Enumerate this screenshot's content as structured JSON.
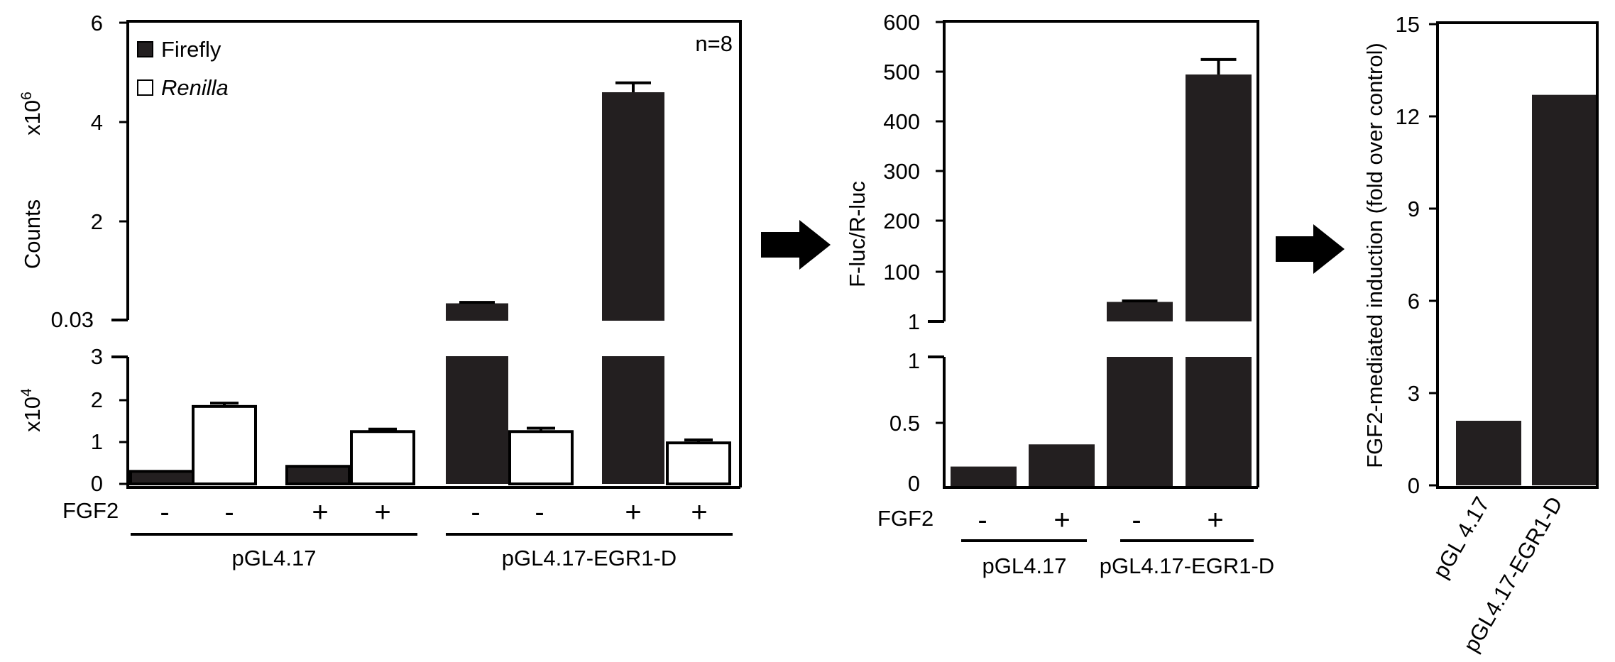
{
  "colors": {
    "filled": "#231f20",
    "open": "#ffffff",
    "axis": "#000000"
  },
  "chart_data": [
    {
      "type": "bar",
      "subtype": "broken-axis grouped bar with error bars",
      "ylabel": "Counts",
      "annotation": "n=8",
      "upper_axis": {
        "multiplier_base": "x10",
        "multiplier_exp": "6",
        "ticks": [
          "6",
          "4",
          "2",
          "0.03"
        ],
        "ylim": [
          0.03,
          6
        ]
      },
      "lower_axis": {
        "multiplier_base": "x10",
        "multiplier_exp": "4",
        "ticks": [
          "3",
          "2",
          "1",
          "0"
        ],
        "ylim": [
          0,
          3
        ]
      },
      "legend": [
        {
          "name": "Firefly",
          "style": "filled"
        },
        {
          "name": "Renilla",
          "style": "open"
        }
      ],
      "factor_label": "FGF2",
      "fgf2_signs": [
        "-",
        "-",
        "+",
        "+",
        "-",
        "-",
        "+",
        "+"
      ],
      "groups": [
        "pGL4.17",
        "pGL4.17-EGR1-D"
      ],
      "bars": [
        {
          "series": "Firefly",
          "fgf2": "-",
          "group": "pGL4.17",
          "value": 3000,
          "unit": "counts",
          "error": 0
        },
        {
          "series": "Renilla",
          "fgf2": "-",
          "group": "pGL4.17",
          "value": 18500,
          "unit": "counts",
          "error": 800
        },
        {
          "series": "Firefly",
          "fgf2": "+",
          "group": "pGL4.17",
          "value": 4200,
          "unit": "counts",
          "error": 0
        },
        {
          "series": "Renilla",
          "fgf2": "+",
          "group": "pGL4.17",
          "value": 12500,
          "unit": "counts",
          "error": 600
        },
        {
          "series": "Firefly",
          "fgf2": "-",
          "group": "pGL4.17-EGR1-D",
          "value": 350000,
          "unit": "counts",
          "error": 20000
        },
        {
          "series": "Renilla",
          "fgf2": "-",
          "group": "pGL4.17-EGR1-D",
          "value": 12500,
          "unit": "counts",
          "error": 800
        },
        {
          "series": "Firefly",
          "fgf2": "+",
          "group": "pGL4.17-EGR1-D",
          "value": 4600000,
          "unit": "counts",
          "error": 190000
        },
        {
          "series": "Renilla",
          "fgf2": "+",
          "group": "pGL4.17-EGR1-D",
          "value": 9800,
          "unit": "counts",
          "error": 700
        }
      ]
    },
    {
      "type": "bar",
      "subtype": "broken-axis bar with error bars",
      "ylabel": "F-luc/R-luc",
      "upper_axis": {
        "ticks": [
          "600",
          "500",
          "400",
          "300",
          "200",
          "100",
          "1"
        ],
        "ylim": [
          1,
          600
        ]
      },
      "lower_axis": {
        "ticks": [
          "1",
          "0.5",
          "0"
        ],
        "ylim": [
          0,
          1
        ]
      },
      "factor_label": "FGF2",
      "fgf2_signs": [
        "-",
        "+",
        "-",
        "+"
      ],
      "groups": [
        "pGL4.17",
        "pGL4.17-EGR1-D"
      ],
      "bars": [
        {
          "fgf2": "-",
          "group": "pGL4.17",
          "value": 0.16,
          "error": 0
        },
        {
          "fgf2": "+",
          "group": "pGL4.17",
          "value": 0.33,
          "error": 0
        },
        {
          "fgf2": "-",
          "group": "pGL4.17-EGR1-D",
          "value": 40,
          "error": 2
        },
        {
          "fgf2": "+",
          "group": "pGL4.17-EGR1-D",
          "value": 495,
          "error": 30
        }
      ]
    },
    {
      "type": "bar",
      "ylabel": "FGF2-mediated induction (fold over control)",
      "ticks": [
        "15",
        "12",
        "9",
        "6",
        "3",
        "0"
      ],
      "ylim": [
        0,
        15
      ],
      "categories": [
        "pGL 4.17",
        "pGL4.17-EGR1-D"
      ],
      "values": [
        2.1,
        12.7
      ]
    }
  ]
}
